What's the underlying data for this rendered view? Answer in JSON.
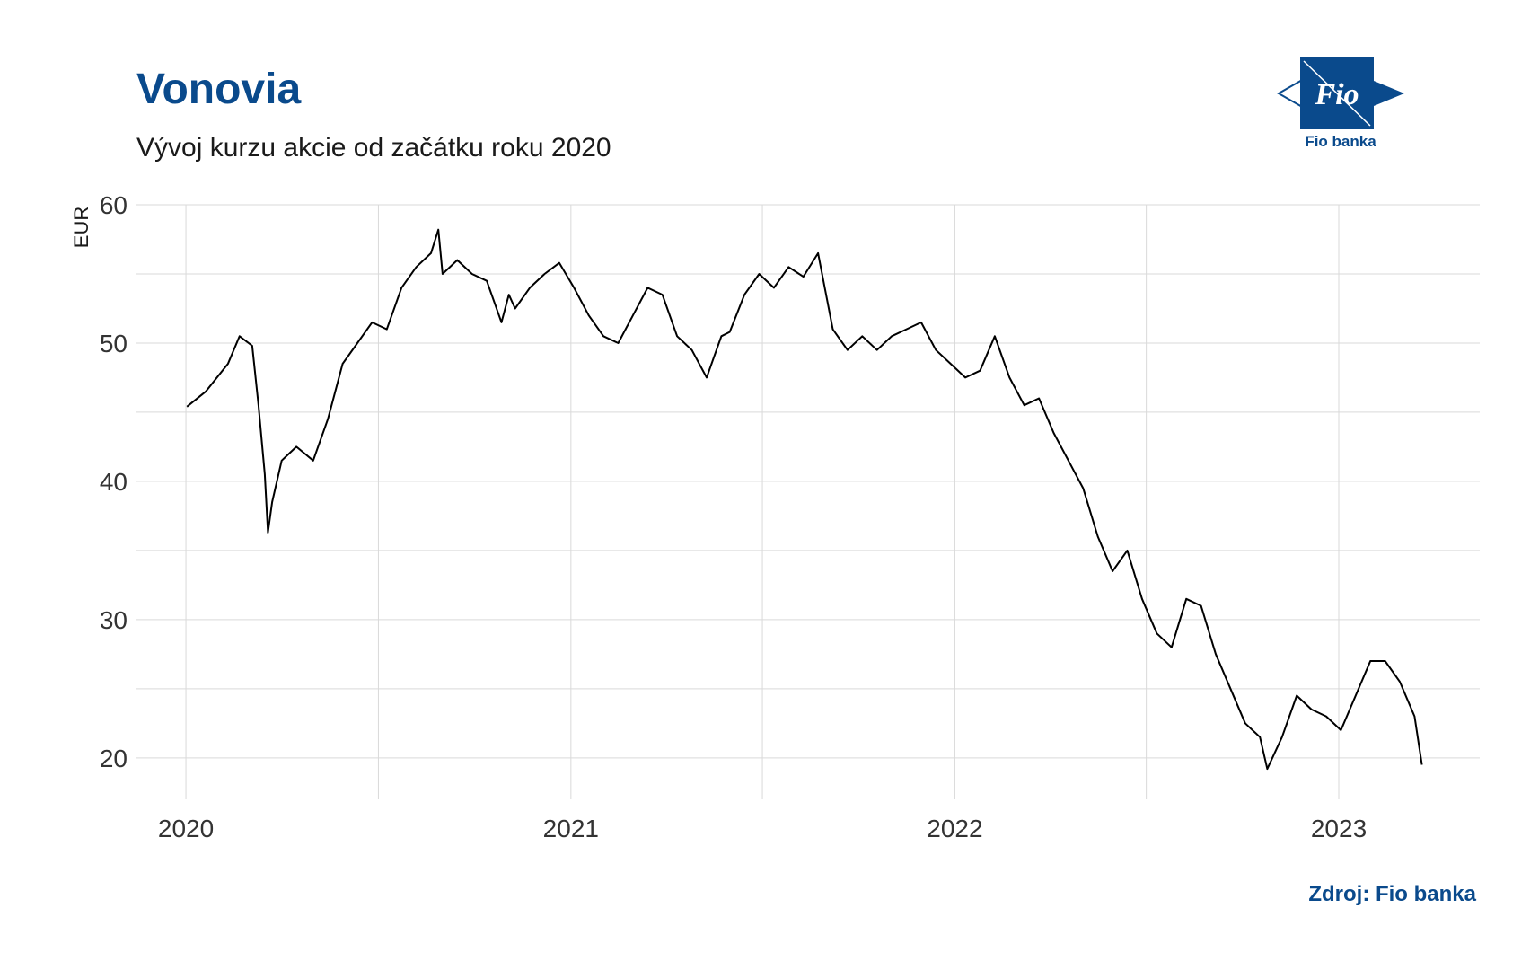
{
  "header": {
    "title": "Vonovia",
    "subtitle": "Vývoj kurzu akcie od začátku roku 2020"
  },
  "logo": {
    "text": "Fio",
    "label": "Fio banka"
  },
  "source": "Zdroj: Fio banka",
  "colors": {
    "title": "#0a4a8c",
    "line": "#000000",
    "grid": "#d9d9d9",
    "logo": "#0a4a8c"
  },
  "chart_data": {
    "type": "line",
    "ylabel": "EUR",
    "xlabel": "",
    "ylim": [
      17,
      60
    ],
    "xlim": [
      "2019-11-15",
      "2023-05-15"
    ],
    "grid": true,
    "y_ticks": [
      20,
      30,
      40,
      50,
      60
    ],
    "x_ticks": [
      "2020",
      "2021",
      "2022",
      "2023"
    ],
    "series": [
      {
        "values_x": [
          "2020-01-02",
          "2020-01-20",
          "2020-02-10",
          "2020-02-21",
          "2020-03-04",
          "2020-03-10",
          "2020-03-16",
          "2020-03-19",
          "2020-03-23",
          "2020-04-01",
          "2020-04-15",
          "2020-05-01",
          "2020-05-15",
          "2020-05-29",
          "2020-06-12",
          "2020-06-26",
          "2020-07-10",
          "2020-07-24",
          "2020-08-07",
          "2020-08-21",
          "2020-08-28",
          "2020-09-01",
          "2020-09-15",
          "2020-09-29",
          "2020-10-13",
          "2020-10-27",
          "2020-11-03",
          "2020-11-09",
          "2020-11-23",
          "2020-12-07",
          "2020-12-21",
          "2021-01-04",
          "2021-01-18",
          "2021-02-01",
          "2021-02-15",
          "2021-03-01",
          "2021-03-15",
          "2021-03-29",
          "2021-04-12",
          "2021-04-26",
          "2021-05-10",
          "2021-05-24",
          "2021-06-01",
          "2021-06-15",
          "2021-06-29",
          "2021-07-13",
          "2021-07-27",
          "2021-08-10",
          "2021-08-24",
          "2021-09-07",
          "2021-09-21",
          "2021-10-05",
          "2021-10-19",
          "2021-11-02",
          "2021-11-16",
          "2021-11-30",
          "2021-12-14",
          "2021-12-28",
          "2022-01-11",
          "2022-01-25",
          "2022-02-08",
          "2022-02-22",
          "2022-03-08",
          "2022-03-22",
          "2022-04-05",
          "2022-04-19",
          "2022-05-03",
          "2022-05-17",
          "2022-05-31",
          "2022-06-14",
          "2022-06-28",
          "2022-07-12",
          "2022-07-26",
          "2022-08-09",
          "2022-08-23",
          "2022-09-06",
          "2022-09-20",
          "2022-10-04",
          "2022-10-18",
          "2022-10-25",
          "2022-11-08",
          "2022-11-22",
          "2022-12-06",
          "2022-12-20",
          "2023-01-03",
          "2023-01-17",
          "2023-01-31",
          "2023-02-14",
          "2023-02-28",
          "2023-03-14",
          "2023-03-21"
        ],
        "values": [
          45.4,
          46.5,
          48.5,
          50.5,
          49.8,
          45.5,
          40.5,
          36.3,
          38.5,
          41.5,
          42.5,
          41.5,
          44.5,
          48.5,
          50.0,
          51.5,
          51.0,
          54.0,
          55.5,
          56.5,
          58.2,
          55.0,
          56.0,
          55.0,
          54.5,
          51.5,
          53.5,
          52.5,
          54.0,
          55.0,
          55.8,
          54.0,
          52.0,
          50.5,
          50.0,
          52.0,
          54.0,
          53.5,
          50.5,
          49.5,
          47.5,
          50.5,
          50.8,
          53.5,
          55.0,
          54.0,
          55.5,
          54.8,
          56.5,
          51.0,
          49.5,
          50.5,
          49.5,
          50.5,
          51.0,
          51.5,
          49.5,
          48.5,
          47.5,
          48.0,
          50.5,
          47.5,
          45.5,
          46.0,
          43.5,
          41.5,
          39.5,
          36.0,
          33.5,
          35.0,
          31.5,
          29.0,
          28.0,
          31.5,
          31.0,
          27.5,
          25.0,
          22.5,
          21.5,
          19.2,
          21.5,
          24.5,
          23.5,
          23.0,
          22.0,
          24.5,
          27.0,
          27.0,
          25.5,
          23.0,
          19.5
        ]
      }
    ]
  }
}
